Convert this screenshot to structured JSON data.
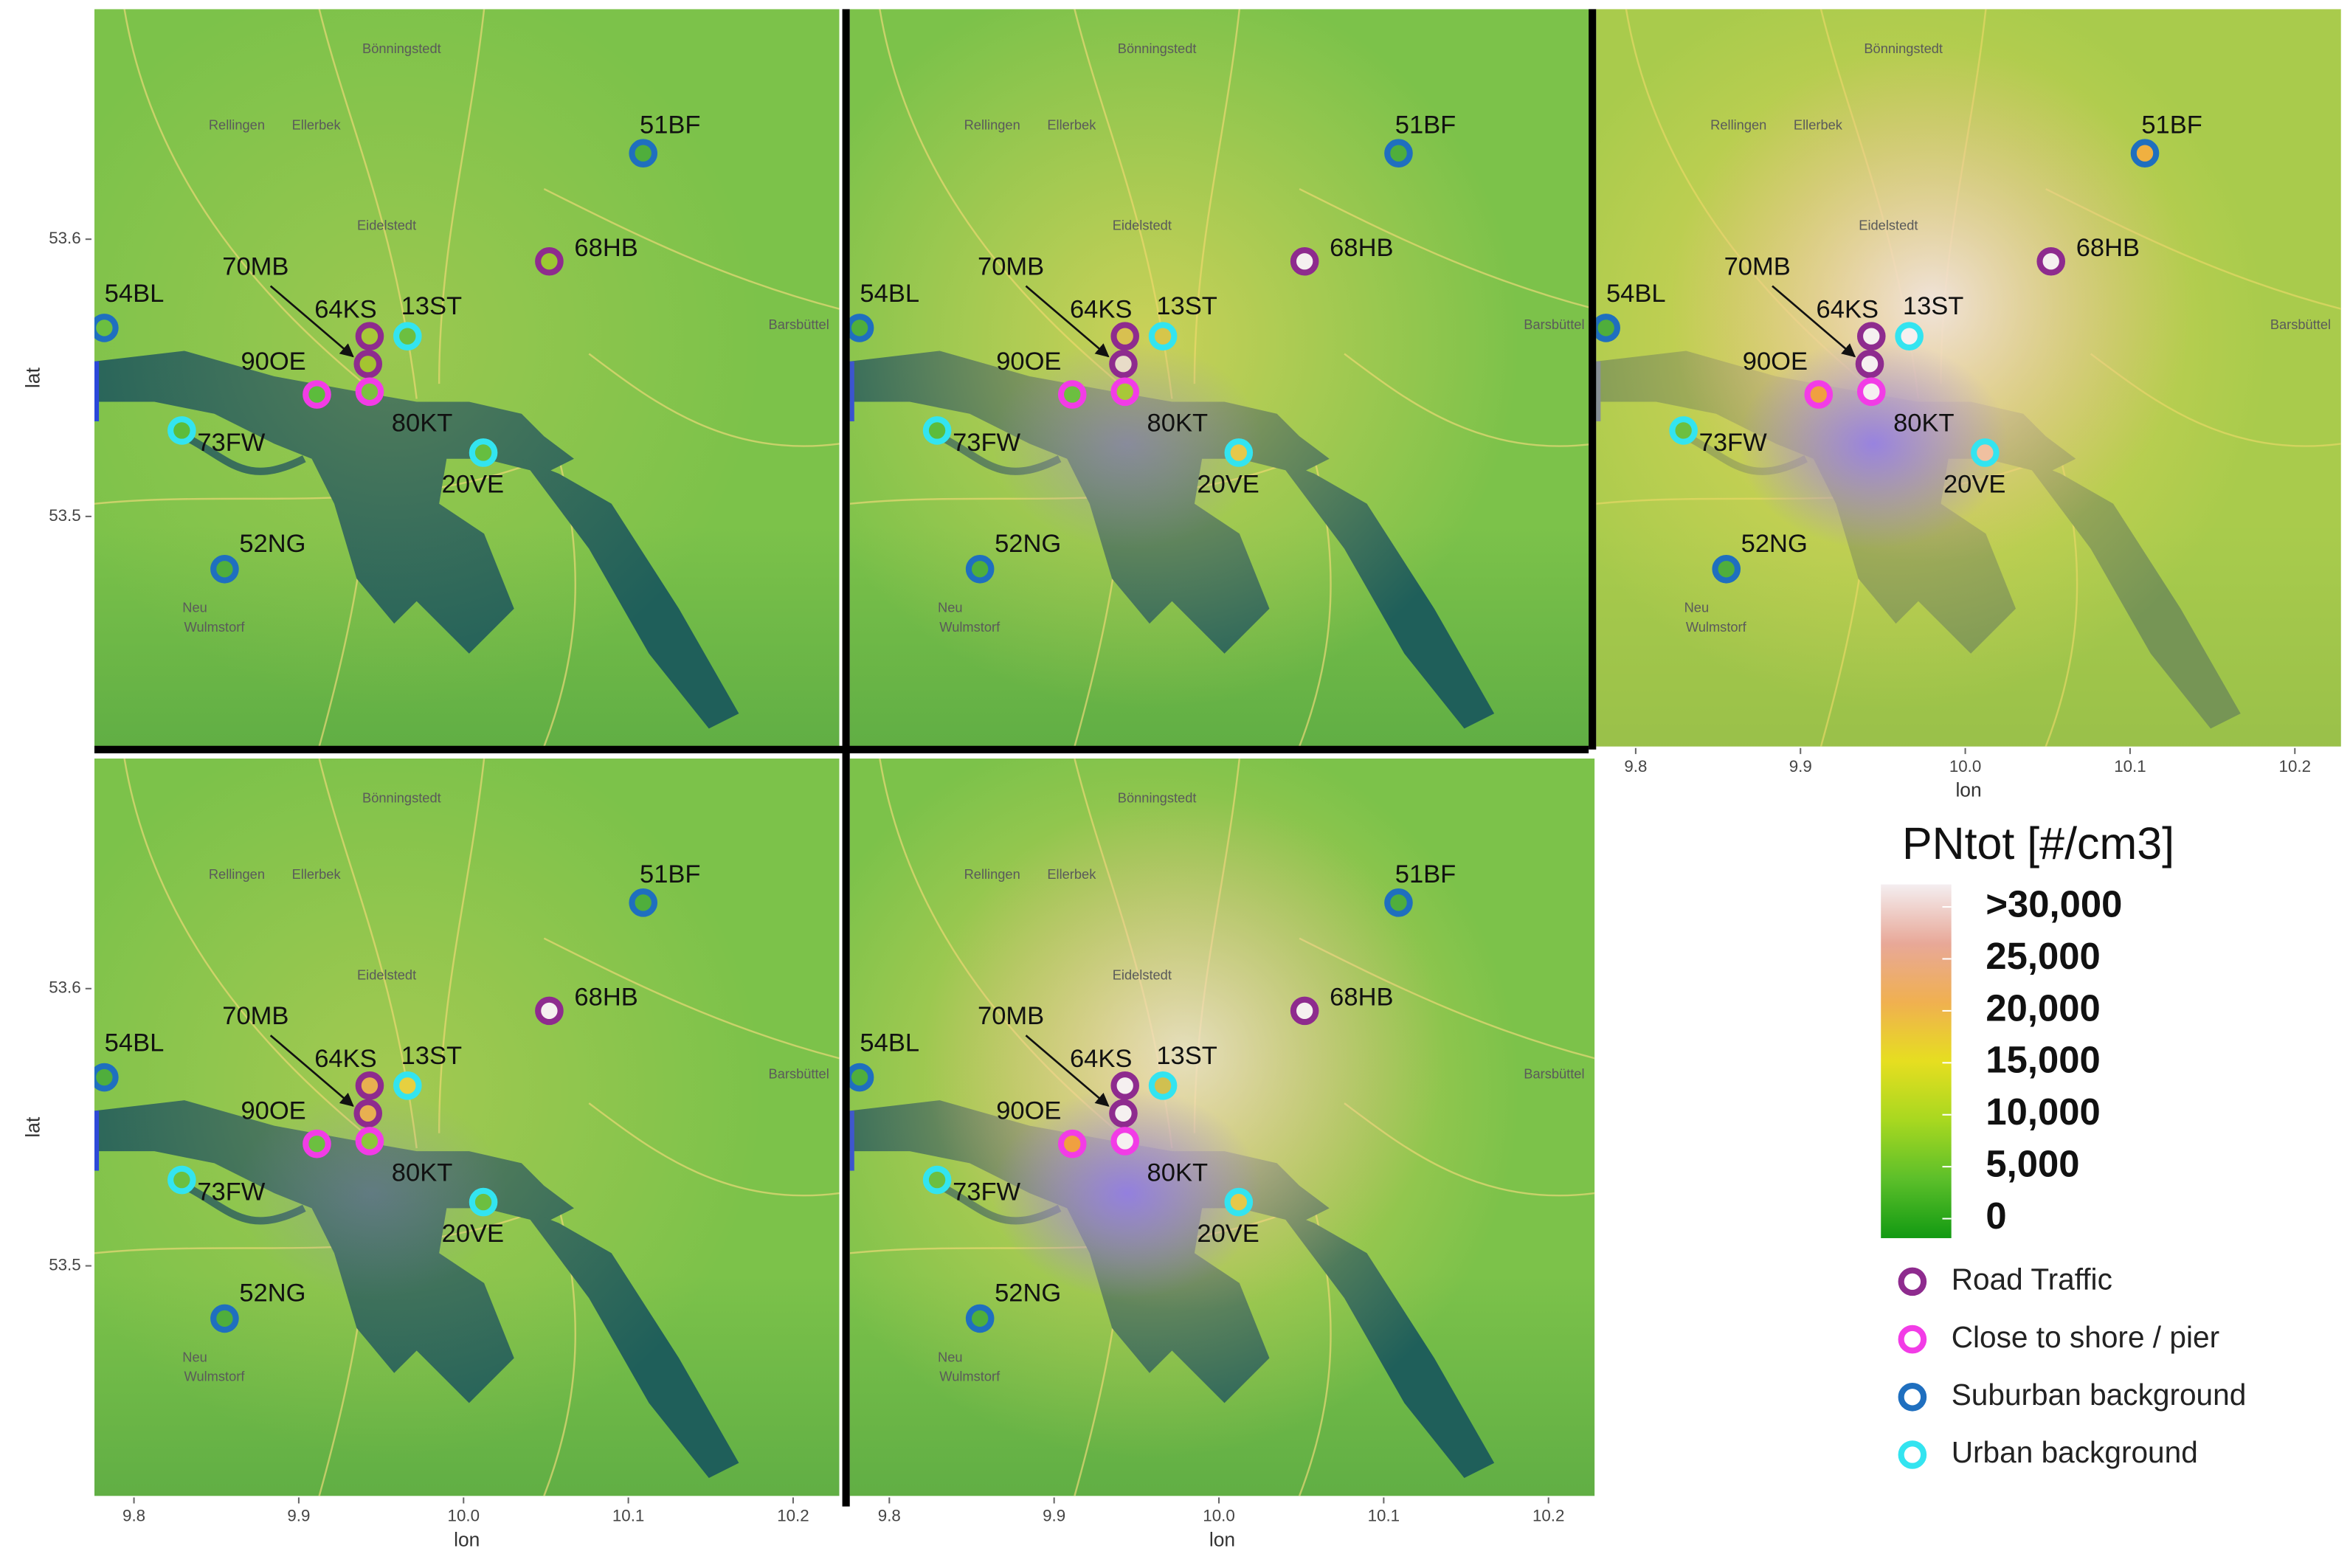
{
  "map": {
    "axes": {
      "xlabel": "lon",
      "ylabel": "lat",
      "xlim": [
        9.776,
        10.228
      ],
      "ylim": [
        53.417,
        53.683
      ],
      "xticks": [
        9.8,
        9.9,
        {
          "value": 10,
          "label": "10.0"
        },
        10.1,
        10.2
      ],
      "yticks": [
        53.5,
        53.6
      ]
    },
    "place_labels": [
      "Bönningstedt",
      "Rellingen",
      "Ellerbek",
      "Eidelstedt",
      "Barsbüttel",
      "Neu",
      "Wulmstorf"
    ],
    "stations": [
      {
        "label": "51BF",
        "lon": 10.109,
        "lat": 53.631,
        "color": "#1f6fbf"
      },
      {
        "label": "68HB",
        "lon": 10.052,
        "lat": 53.592,
        "color": "#8e2b8e"
      },
      {
        "label": "70MB",
        "lon": 9.942,
        "lat": 53.555,
        "color": "#8e2b8e"
      },
      {
        "label": "64KS",
        "lon": 9.943,
        "lat": 53.565,
        "color": "#8e2b8e"
      },
      {
        "label": "13ST",
        "lon": 9.966,
        "lat": 53.565,
        "color": "#33e4f0"
      },
      {
        "label": "54BL",
        "lon": 9.782,
        "lat": 53.568,
        "color": "#1f6fbf"
      },
      {
        "label": "90OE",
        "lon": 9.911,
        "lat": 53.544,
        "color": "#f23ce6"
      },
      {
        "label": "80KT",
        "lon": 9.943,
        "lat": 53.545,
        "color": "#f23ce6"
      },
      {
        "label": "73FW",
        "lon": 9.829,
        "lat": 53.531,
        "color": "#33e4f0"
      },
      {
        "label": "20VE",
        "lon": 10.012,
        "lat": 53.523,
        "color": "#33e4f0"
      },
      {
        "label": "52NG",
        "lon": 9.855,
        "lat": 53.481,
        "color": "#1f6fbf"
      }
    ],
    "panels": [
      {
        "lat_axis": true,
        "lon_axis": false,
        "fills": [
          "#4fae3c",
          "#9cc832",
          "#a4c430",
          "#a8c838",
          "#6cbf40",
          "#6cbf40",
          "#5cbc3c",
          "#7cc040",
          "#5cbc3c",
          "#66be40",
          "#4fae3c"
        ]
      },
      {
        "lat_axis": false,
        "lon_axis": false,
        "fills": [
          "#4fae3c",
          "#f5f0f0",
          "#e8dcc8",
          "#d8c050",
          "#d6c64a",
          "#4fae3c",
          "#6cbf40",
          "#a8c838",
          "#5cbc3c",
          "#e6c84a",
          "#4fae3c"
        ]
      },
      {
        "lat_axis": false,
        "lon_axis": true,
        "fills": [
          "#f0b040",
          "#f5f0f0",
          "#f5f0f0",
          "#f5f0f0",
          "#f5f0f0",
          "#4fae3c",
          "#f0a040",
          "#f5f0f0",
          "#6cbf40",
          "#f0c0a0",
          "#4fae3c"
        ]
      },
      {
        "lat_axis": true,
        "lon_axis": true,
        "fills": [
          "#4fae3c",
          "#f5f0f0",
          "#e8b050",
          "#e8b050",
          "#e6d040",
          "#4fae3c",
          "#6cbf40",
          "#8cc63c",
          "#6cbf40",
          "#6cbf40",
          "#4fae3c"
        ]
      },
      {
        "lat_axis": false,
        "lon_axis": true,
        "fills": [
          "#4fae3c",
          "#f5f0f0",
          "#f5f0f0",
          "#f5f0f0",
          "#d0c050",
          "#4fae3c",
          "#f0a040",
          "#f5f0f0",
          "#6cbf40",
          "#e6c84a",
          "#4fae3c"
        ]
      }
    ],
    "legend": {
      "title": "PNtot [#/cm3]",
      "colorbar": {
        "lim": [
          0,
          30000
        ],
        "colors": [
          "#129a12",
          "#5cbf2a",
          "#a8d820",
          "#e6de20",
          "#f0b050",
          "#e8a898",
          "#f4eef0"
        ],
        "ticks": [
          {
            "value": 30000,
            "label": ">30,000"
          },
          {
            "value": 25000,
            "label": "25,000"
          },
          {
            "value": 20000,
            "label": "20,000"
          },
          {
            "value": 15000,
            "label": "15,000"
          },
          {
            "value": 10000,
            "label": "10,000"
          },
          {
            "value": 5000,
            "label": "5,000"
          },
          0
        ]
      },
      "items": [
        {
          "label": "Road Traffic",
          "color": "#8e2b8e"
        },
        {
          "label": "Close to shore / pier",
          "color": "#f23ce6"
        },
        {
          "label": "Suburban background",
          "color": "#1f6fbf"
        },
        {
          "label": "Urban background",
          "color": "#33e4f0"
        }
      ]
    }
  }
}
